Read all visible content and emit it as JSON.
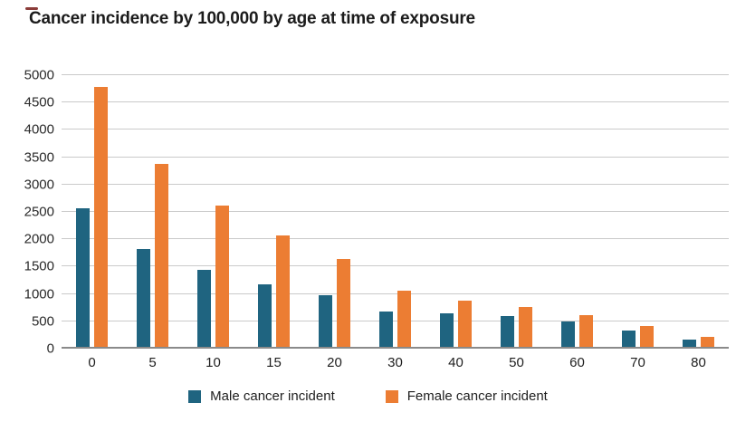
{
  "chart_data": {
    "type": "bar",
    "title": "Cancer incidence by 100,000 by age at time of exposure",
    "categories": [
      "0",
      "5",
      "10",
      "15",
      "20",
      "30",
      "40",
      "50",
      "60",
      "70",
      "80"
    ],
    "series": [
      {
        "name": "Male cancer incident",
        "color": "#1F6480",
        "values": [
          2563,
          1816,
          1445,
          1182,
          977,
          686,
          648,
          591,
          489,
          339,
          172
        ]
      },
      {
        "name": "Female cancer incident",
        "color": "#EC7D33",
        "values": [
          4777,
          3377,
          2611,
          2064,
          1646,
          1065,
          886,
          765,
          615,
          420,
          215
        ]
      }
    ],
    "xlabel": "",
    "ylabel": "",
    "ylim": [
      0,
      5000
    ],
    "yticks": [
      0,
      500,
      1000,
      1500,
      2000,
      2500,
      3000,
      3500,
      4000,
      4500,
      5000
    ],
    "grid": true,
    "legend_position": "bottom",
    "colors": {
      "gridline": "#CACACA",
      "axis_line": "#8A8A8A",
      "title_text": "#1B1B1B",
      "tick_text": "#2A2A2A"
    }
  }
}
